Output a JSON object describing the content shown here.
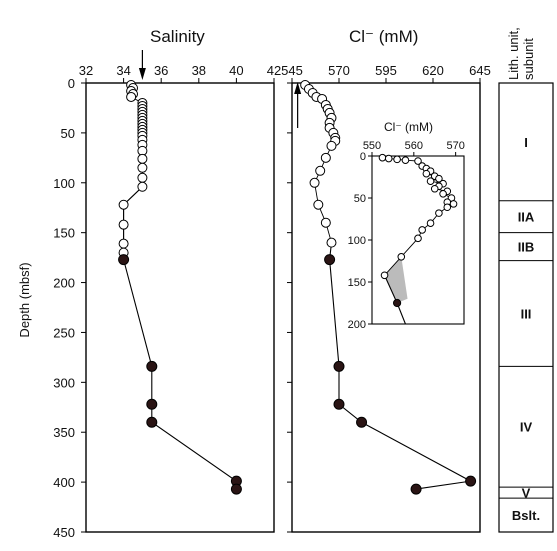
{
  "colors": {
    "axis": "#000000",
    "open_marker_fill": "#ffffff",
    "filled_marker_fill": "#2a1414",
    "shade": "#bbbbbb"
  },
  "y_axis": {
    "label": "Depth (mbsf)",
    "ticks": [
      "0",
      "50",
      "100",
      "150",
      "200",
      "250",
      "300",
      "350",
      "400",
      "450"
    ]
  },
  "lith_column": {
    "header": [
      "Lith. unit,",
      "subunit"
    ],
    "units": [
      {
        "label": "I",
        "top": 0,
        "bottom": 118
      },
      {
        "label": "IIA",
        "top": 118,
        "bottom": 150
      },
      {
        "label": "IIB",
        "top": 150,
        "bottom": 178
      },
      {
        "label": "III",
        "top": 178,
        "bottom": 284
      },
      {
        "label": "IV",
        "top": 284,
        "bottom": 405
      },
      {
        "label": "V",
        "top": 405,
        "bottom": 416
      },
      {
        "label": "Bslt.",
        "top": 416,
        "bottom": 450
      }
    ]
  },
  "chart_data": [
    {
      "type": "scatter",
      "title": "Salinity",
      "xlim": [
        32,
        42
      ],
      "x_ticks": [
        "32",
        "34",
        "36",
        "38",
        "40",
        "42"
      ],
      "ylim": [
        0,
        450
      ],
      "y_inverted": true,
      "annotation": "arrow at salinity 35",
      "series": [
        {
          "marker": "open",
          "points": [
            [
              34.4,
              2
            ],
            [
              34.5,
              5
            ],
            [
              34.4,
              8
            ],
            [
              34.5,
              11
            ],
            [
              34.4,
              14
            ],
            [
              35.0,
              20
            ],
            [
              35.0,
              23
            ],
            [
              35.0,
              26
            ],
            [
              35.0,
              29
            ],
            [
              35.0,
              32
            ],
            [
              35.0,
              35
            ],
            [
              35.0,
              38
            ],
            [
              35.0,
              41
            ],
            [
              35.0,
              44
            ],
            [
              35.0,
              47
            ],
            [
              35.0,
              50
            ],
            [
              35.0,
              53
            ],
            [
              35.0,
              57
            ],
            [
              35.0,
              62
            ],
            [
              35.0,
              68
            ],
            [
              35.0,
              76
            ],
            [
              35.0,
              85
            ],
            [
              35.0,
              95
            ],
            [
              35.0,
              104
            ],
            [
              34.0,
              122
            ],
            [
              34.0,
              142
            ],
            [
              34.0,
              161
            ],
            [
              34.0,
              170
            ]
          ]
        },
        {
          "marker": "filled",
          "points": [
            [
              34.0,
              177
            ],
            [
              35.5,
              284
            ],
            [
              35.5,
              322
            ],
            [
              35.5,
              340
            ],
            [
              40.0,
              399
            ],
            [
              40.0,
              407
            ]
          ]
        },
        {
          "connector": true,
          "points": [
            [
              35.0,
              104
            ],
            [
              34.0,
              122
            ],
            [
              34.0,
              177
            ],
            [
              35.5,
              284
            ],
            [
              35.5,
              340
            ],
            [
              40.0,
              399
            ],
            [
              40.0,
              407
            ]
          ]
        }
      ]
    },
    {
      "type": "scatter",
      "title": "Cl⁻ (mM)",
      "xlim": [
        545,
        645
      ],
      "x_ticks": [
        "545",
        "570",
        "595",
        "620",
        "645"
      ],
      "ylim": [
        0,
        450
      ],
      "y_inverted": true,
      "annotation": "arrow at Cl 548",
      "series": [
        {
          "marker": "open",
          "points": [
            [
              552,
              2
            ],
            [
              554,
              6
            ],
            [
              556,
              10
            ],
            [
              558,
              14
            ],
            [
              561,
              16
            ],
            [
              563,
              22
            ],
            [
              564,
              26
            ],
            [
              565,
              30
            ],
            [
              566,
              35
            ],
            [
              565,
              40
            ],
            [
              565,
              45
            ],
            [
              567,
              50
            ],
            [
              568,
              55
            ],
            [
              568,
              58
            ],
            [
              566,
              63
            ],
            [
              563,
              75
            ],
            [
              560,
              88
            ],
            [
              557,
              100
            ],
            [
              559,
              122
            ],
            [
              563,
              140
            ],
            [
              566,
              160
            ]
          ]
        },
        {
          "marker": "filled",
          "points": [
            [
              565,
              177
            ],
            [
              570,
              284
            ],
            [
              570,
              322
            ],
            [
              582,
              340
            ],
            [
              640,
              399
            ],
            [
              611,
              407
            ]
          ]
        },
        {
          "connector": true,
          "points": [
            [
              566,
              160
            ],
            [
              565,
              177
            ],
            [
              570,
              284
            ],
            [
              570,
              322
            ],
            [
              582,
              340
            ],
            [
              640,
              399
            ],
            [
              611,
              407
            ]
          ]
        }
      ]
    },
    {
      "type": "scatter",
      "title": "Cl⁻ (mM)",
      "xlim": [
        550,
        572
      ],
      "x_ticks": [
        "550",
        "560",
        "570"
      ],
      "ylim": [
        0,
        200
      ],
      "y_ticks": [
        "0",
        "50",
        "100",
        "150",
        "200"
      ],
      "y_inverted": true,
      "series": [
        {
          "marker": "open",
          "points": [
            [
              552.5,
              2
            ],
            [
              554,
              3
            ],
            [
              556,
              4
            ],
            [
              558,
              5
            ],
            [
              561,
              6
            ],
            [
              562,
              12
            ],
            [
              563,
              15
            ],
            [
              564,
              18
            ],
            [
              563,
              21
            ],
            [
              565,
              24
            ],
            [
              566,
              27
            ],
            [
              564,
              30
            ],
            [
              567,
              33
            ],
            [
              566,
              36
            ],
            [
              565,
              39
            ],
            [
              568,
              42
            ],
            [
              567,
              45
            ],
            [
              569,
              50
            ],
            [
              568,
              55
            ],
            [
              569.5,
              57
            ],
            [
              568,
              61
            ],
            [
              566,
              68
            ],
            [
              564,
              80
            ],
            [
              562,
              88
            ],
            [
              561,
              98
            ],
            [
              557,
              120
            ],
            [
              553,
              142
            ]
          ]
        },
        {
          "marker": "filled",
          "points": [
            [
              556,
              175
            ]
          ]
        },
        {
          "connector": true,
          "points": [
            [
              553,
              142
            ],
            [
              556,
              175
            ],
            [
              558,
              200
            ]
          ]
        }
      ]
    }
  ]
}
